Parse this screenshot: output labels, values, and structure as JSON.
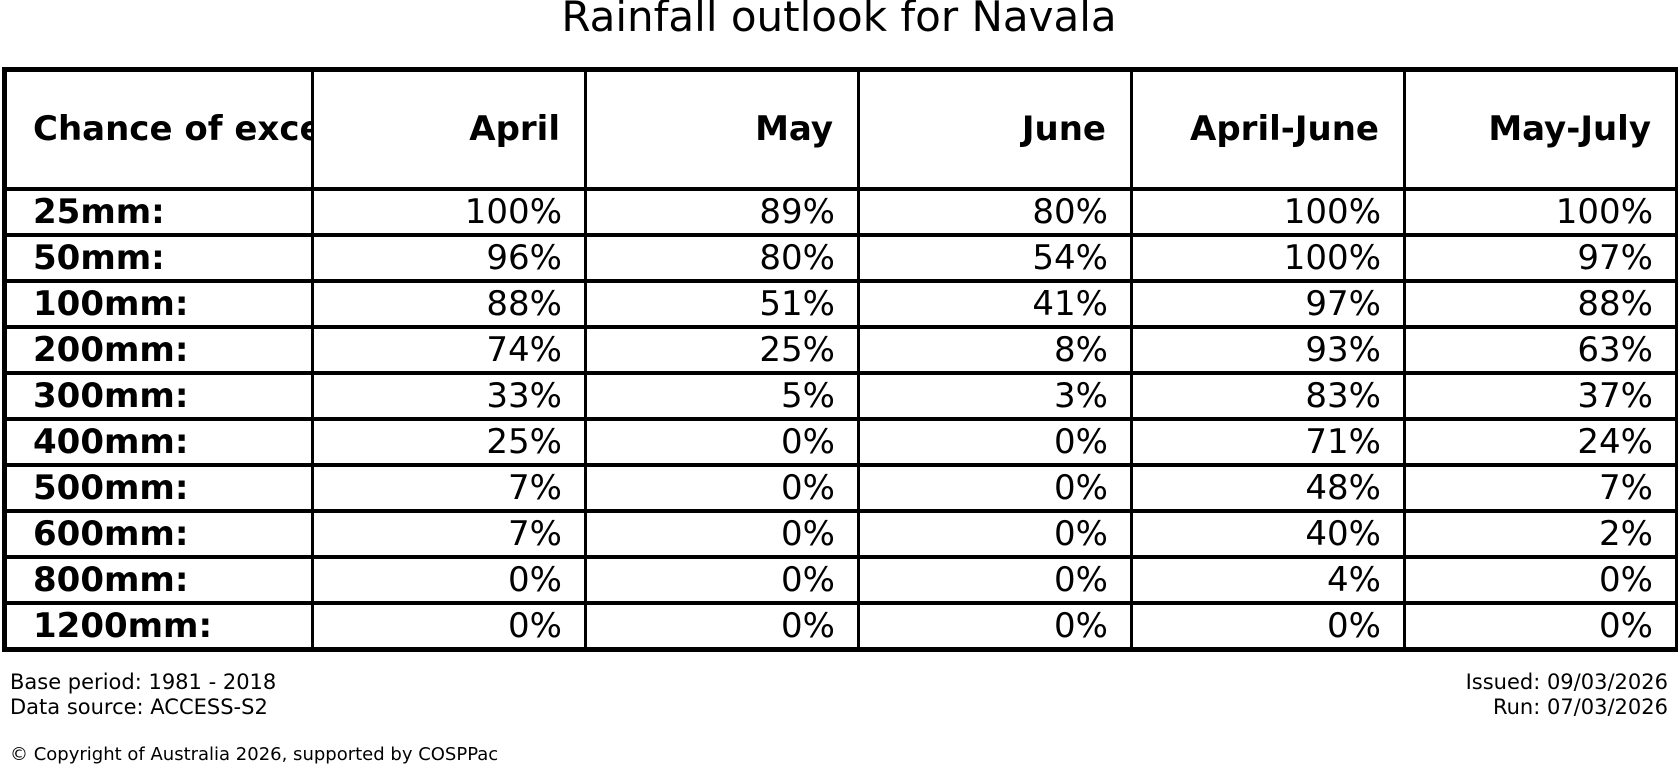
{
  "colors": {
    "background": "#ffffff",
    "text": "#000000",
    "border": "#000000"
  },
  "chart_data": {
    "type": "table",
    "title": "Rainfall outlook for Navala",
    "corner_header": "Chance of\nexceeding\na threshold:",
    "columns": [
      "April",
      "May",
      "June",
      "April-June",
      "May-July"
    ],
    "rows": [
      {
        "label": "25mm:",
        "values": [
          "100%",
          "89%",
          "80%",
          "100%",
          "100%"
        ]
      },
      {
        "label": "50mm:",
        "values": [
          "96%",
          "80%",
          "54%",
          "100%",
          "97%"
        ]
      },
      {
        "label": "100mm:",
        "values": [
          "88%",
          "51%",
          "41%",
          "97%",
          "88%"
        ]
      },
      {
        "label": "200mm:",
        "values": [
          "74%",
          "25%",
          "8%",
          "93%",
          "63%"
        ]
      },
      {
        "label": "300mm:",
        "values": [
          "33%",
          "5%",
          "3%",
          "83%",
          "37%"
        ]
      },
      {
        "label": "400mm:",
        "values": [
          "25%",
          "0%",
          "0%",
          "71%",
          "24%"
        ]
      },
      {
        "label": "500mm:",
        "values": [
          "7%",
          "0%",
          "0%",
          "48%",
          "7%"
        ]
      },
      {
        "label": "600mm:",
        "values": [
          "7%",
          "0%",
          "0%",
          "40%",
          "2%"
        ]
      },
      {
        "label": "800mm:",
        "values": [
          "0%",
          "0%",
          "0%",
          "4%",
          "0%"
        ]
      },
      {
        "label": "1200mm:",
        "values": [
          "0%",
          "0%",
          "0%",
          "0%",
          "0%"
        ]
      }
    ]
  },
  "footer": {
    "base_period": "Base period: 1981 - 2018",
    "data_source": "Data source: ACCESS-S2",
    "issued": "Issued: 09/03/2026",
    "run": "Run: 07/03/2026",
    "copyright": "© Copyright of Australia 2026, supported by COSPPac"
  }
}
